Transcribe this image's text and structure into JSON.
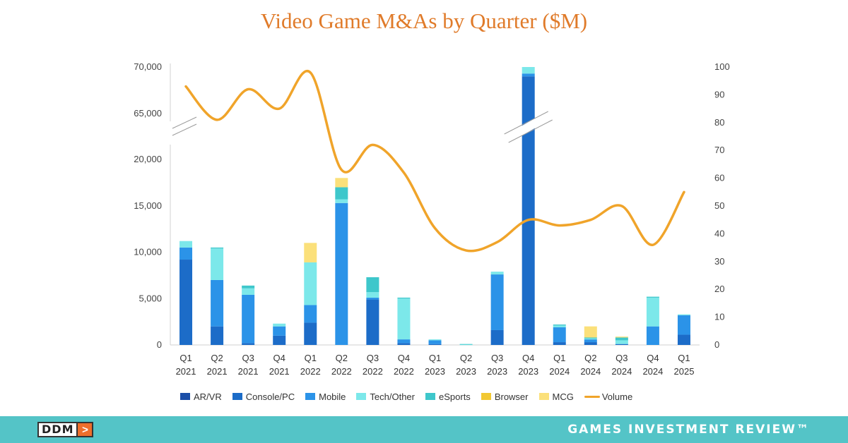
{
  "chart_data": {
    "type": "bar",
    "subtype": "stacked bar with line (dual axis, broken left axis)",
    "title": "Video Game M&As by Quarter ($M)",
    "xlabel": "",
    "ylabel": "",
    "categories": [
      [
        "Q1",
        "2021"
      ],
      [
        "Q2",
        "2021"
      ],
      [
        "Q3",
        "2021"
      ],
      [
        "Q4",
        "2021"
      ],
      [
        "Q1",
        "2022"
      ],
      [
        "Q2",
        "2022"
      ],
      [
        "Q3",
        "2022"
      ],
      [
        "Q4",
        "2022"
      ],
      [
        "Q1",
        "2023"
      ],
      [
        "Q2",
        "2023"
      ],
      [
        "Q3",
        "2023"
      ],
      [
        "Q4",
        "2023"
      ],
      [
        "Q1",
        "2024"
      ],
      [
        "Q2",
        "2024"
      ],
      [
        "Q3",
        "2024"
      ],
      [
        "Q4",
        "2024"
      ],
      [
        "Q1",
        "2025"
      ]
    ],
    "y_left": {
      "ticks_lower": [
        0,
        5000,
        10000,
        15000,
        20000
      ],
      "tick_labels_lower": [
        "0",
        "5,000",
        "10,000",
        "15,000",
        "20,000"
      ],
      "ticks_upper": [
        65000,
        70000
      ],
      "tick_labels_upper": [
        "65,000",
        "70,000"
      ],
      "axis_break": [
        21500,
        63000
      ]
    },
    "y_right": {
      "ylim": [
        0,
        100
      ],
      "ticks": [
        0,
        10,
        20,
        30,
        40,
        50,
        60,
        70,
        80,
        90,
        100
      ],
      "tick_labels": [
        "0",
        "10",
        "20",
        "30",
        "40",
        "50",
        "60",
        "70",
        "80",
        "90",
        "100"
      ]
    },
    "series": [
      {
        "name": "AR/VR",
        "color": "#1b4fa8",
        "values": [
          0,
          0,
          0,
          0,
          0,
          0,
          0,
          0,
          0,
          0,
          0,
          0,
          0,
          0,
          0,
          0,
          0
        ]
      },
      {
        "name": "Console/PC",
        "color": "#1c6cc8",
        "values": [
          9200,
          2000,
          200,
          1000,
          2400,
          0,
          4900,
          200,
          100,
          0,
          1600,
          69000,
          300,
          300,
          100,
          0,
          1100
        ]
      },
      {
        "name": "Mobile",
        "color": "#2b93e8",
        "values": [
          1300,
          5000,
          5200,
          1000,
          1900,
          15300,
          200,
          400,
          400,
          0,
          6000,
          300,
          1600,
          300,
          0,
          2000,
          2100
        ]
      },
      {
        "name": "Tech/Other",
        "color": "#7ce8ea",
        "values": [
          700,
          3400,
          700,
          300,
          4600,
          400,
          600,
          4400,
          100,
          50,
          300,
          700,
          200,
          100,
          400,
          3100,
          100
        ]
      },
      {
        "name": "eSports",
        "color": "#3ec7cb",
        "values": [
          0,
          100,
          300,
          0,
          0,
          1300,
          1600,
          100,
          0,
          50,
          0,
          0,
          100,
          100,
          300,
          100,
          0
        ]
      },
      {
        "name": "Browser",
        "color": "#f2c832",
        "values": [
          0,
          0,
          0,
          0,
          0,
          0,
          0,
          0,
          0,
          0,
          0,
          0,
          0,
          0,
          0,
          0,
          0
        ]
      },
      {
        "name": "MCG",
        "color": "#fbe07a",
        "values": [
          0,
          0,
          0,
          0,
          2100,
          1000,
          0,
          0,
          0,
          0,
          0,
          0,
          0,
          1200,
          100,
          0,
          0
        ]
      }
    ],
    "line_series": {
      "name": "Volume",
      "axis": "right",
      "color": "#f0a42a",
      "values": [
        93,
        81,
        92,
        85,
        98,
        63,
        72,
        62,
        42,
        34,
        37,
        45,
        43,
        45,
        50,
        36,
        55
      ]
    },
    "legend": [
      "AR/VR",
      "Console/PC",
      "Mobile",
      "Tech/Other",
      "eSports",
      "Browser",
      "MCG",
      "Volume"
    ],
    "legend_position": "bottom",
    "grid": false
  },
  "footer": {
    "logo_text": "DDM",
    "logo_arrow": ">",
    "brand": "GAMES INVESTMENT REVIEW™",
    "background": "#54c4c7"
  }
}
